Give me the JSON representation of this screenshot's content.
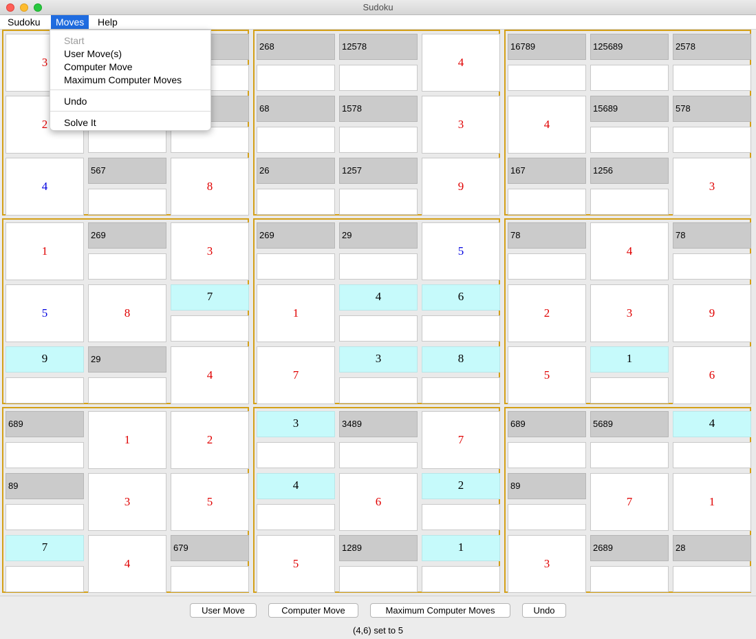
{
  "window": {
    "title": "Sudoku"
  },
  "menubar": {
    "items": [
      "Sudoku",
      "Moves",
      "Help"
    ]
  },
  "moves_menu": {
    "items": [
      {
        "label": "Start",
        "enabled": false
      },
      {
        "label": "User Move(s)",
        "enabled": true
      },
      {
        "label": "Computer Move",
        "enabled": true
      },
      {
        "label": "Maximum Computer Moves",
        "enabled": true
      },
      {
        "label": "Undo",
        "enabled": true
      },
      {
        "label": "Solve It",
        "enabled": true
      }
    ]
  },
  "colors": {
    "given_red": "#e00000",
    "given_blue": "#0000e0",
    "placed_bg": "#c6fafb",
    "candidate_bg": "#cbcbcb",
    "box_border": "#d4a017",
    "menu_highlight": "#1f6ce0"
  },
  "grid": [
    [
      {
        "t": "g",
        "v": "3",
        "c": "red"
      },
      {
        "t": "c",
        "v": ""
      },
      {
        "t": "c",
        "v": ""
      },
      {
        "t": "c",
        "v": "268"
      },
      {
        "t": "c",
        "v": "12578"
      },
      {
        "t": "g",
        "v": "4",
        "c": "red"
      },
      {
        "t": "c",
        "v": "16789"
      },
      {
        "t": "c",
        "v": "125689"
      },
      {
        "t": "c",
        "v": "2578"
      }
    ],
    [
      {
        "t": "g",
        "v": "2",
        "c": "red"
      },
      {
        "t": "e",
        "v": ""
      },
      {
        "t": "c",
        "v": ""
      },
      {
        "t": "c",
        "v": "68"
      },
      {
        "t": "c",
        "v": "1578"
      },
      {
        "t": "g",
        "v": "3",
        "c": "red"
      },
      {
        "t": "g",
        "v": "4",
        "c": "red"
      },
      {
        "t": "c",
        "v": "15689"
      },
      {
        "t": "c",
        "v": "578"
      }
    ],
    [
      {
        "t": "g",
        "v": "4",
        "c": "blue"
      },
      {
        "t": "c",
        "v": "567"
      },
      {
        "t": "g",
        "v": "8",
        "c": "red"
      },
      {
        "t": "c",
        "v": "26"
      },
      {
        "t": "c",
        "v": "1257"
      },
      {
        "t": "g",
        "v": "9",
        "c": "red"
      },
      {
        "t": "c",
        "v": "167"
      },
      {
        "t": "c",
        "v": "1256"
      },
      {
        "t": "g",
        "v": "3",
        "c": "red"
      }
    ],
    [
      {
        "t": "g",
        "v": "1",
        "c": "red"
      },
      {
        "t": "c",
        "v": "269"
      },
      {
        "t": "g",
        "v": "3",
        "c": "red"
      },
      {
        "t": "c",
        "v": "269"
      },
      {
        "t": "c",
        "v": "29"
      },
      {
        "t": "g",
        "v": "5",
        "c": "blue"
      },
      {
        "t": "c",
        "v": "78"
      },
      {
        "t": "g",
        "v": "4",
        "c": "red"
      },
      {
        "t": "c",
        "v": "78"
      }
    ],
    [
      {
        "t": "g",
        "v": "5",
        "c": "blue"
      },
      {
        "t": "g",
        "v": "8",
        "c": "red"
      },
      {
        "t": "p",
        "v": "7"
      },
      {
        "t": "g",
        "v": "1",
        "c": "red"
      },
      {
        "t": "p",
        "v": "4"
      },
      {
        "t": "p",
        "v": "6"
      },
      {
        "t": "g",
        "v": "2",
        "c": "red"
      },
      {
        "t": "g",
        "v": "3",
        "c": "red"
      },
      {
        "t": "g",
        "v": "9",
        "c": "red"
      }
    ],
    [
      {
        "t": "p",
        "v": "9"
      },
      {
        "t": "c",
        "v": "29"
      },
      {
        "t": "g",
        "v": "4",
        "c": "red"
      },
      {
        "t": "g",
        "v": "7",
        "c": "red"
      },
      {
        "t": "p",
        "v": "3"
      },
      {
        "t": "p",
        "v": "8"
      },
      {
        "t": "g",
        "v": "5",
        "c": "red"
      },
      {
        "t": "p",
        "v": "1"
      },
      {
        "t": "g",
        "v": "6",
        "c": "red"
      }
    ],
    [
      {
        "t": "c",
        "v": "689"
      },
      {
        "t": "g",
        "v": "1",
        "c": "red"
      },
      {
        "t": "g",
        "v": "2",
        "c": "red"
      },
      {
        "t": "p",
        "v": "3"
      },
      {
        "t": "c",
        "v": "3489"
      },
      {
        "t": "g",
        "v": "7",
        "c": "red"
      },
      {
        "t": "c",
        "v": "689"
      },
      {
        "t": "c",
        "v": "5689"
      },
      {
        "t": "p",
        "v": "4"
      }
    ],
    [
      {
        "t": "c",
        "v": "89"
      },
      {
        "t": "g",
        "v": "3",
        "c": "red"
      },
      {
        "t": "g",
        "v": "5",
        "c": "red"
      },
      {
        "t": "p",
        "v": "4"
      },
      {
        "t": "g",
        "v": "6",
        "c": "red"
      },
      {
        "t": "p",
        "v": "2"
      },
      {
        "t": "c",
        "v": "89"
      },
      {
        "t": "g",
        "v": "7",
        "c": "red"
      },
      {
        "t": "g",
        "v": "1",
        "c": "red"
      }
    ],
    [
      {
        "t": "p",
        "v": "7"
      },
      {
        "t": "g",
        "v": "4",
        "c": "red"
      },
      {
        "t": "c",
        "v": "679"
      },
      {
        "t": "g",
        "v": "5",
        "c": "red"
      },
      {
        "t": "c",
        "v": "1289"
      },
      {
        "t": "p",
        "v": "1"
      },
      {
        "t": "g",
        "v": "3",
        "c": "red"
      },
      {
        "t": "c",
        "v": "2689"
      },
      {
        "t": "c",
        "v": "28"
      }
    ]
  ],
  "buttons": [
    "User Move",
    "Computer Move",
    "Maximum Computer Moves",
    "Undo"
  ],
  "status": "(4,6) set to 5"
}
